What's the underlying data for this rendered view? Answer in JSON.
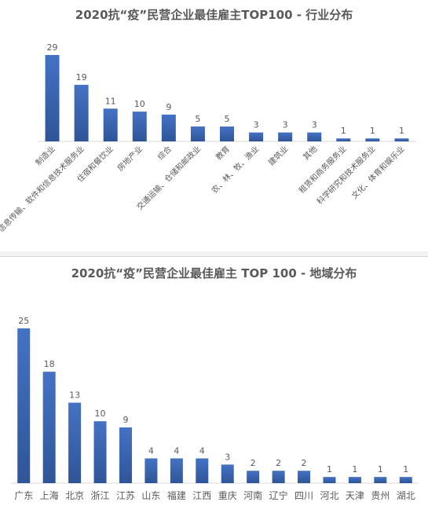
{
  "chart_data": [
    {
      "type": "bar",
      "title": "2020抗“疫”民营企业最佳雇主TOP100 - 行业分布",
      "categories": [
        "制造业",
        "信息传输、软件和信息技术服务业",
        "住宿和餐饮业",
        "房地产业",
        "综合",
        "交通运输、仓储和邮政业",
        "教育",
        "农、林、牧、渔业",
        "建筑业",
        "其他",
        "租赁和商务服务业",
        "科学研究和技术服务业",
        "文化、体育和娱乐业"
      ],
      "values": [
        29,
        19,
        11,
        10,
        9,
        5,
        5,
        3,
        3,
        3,
        1,
        1,
        1
      ],
      "value_labels": [
        "29",
        "19",
        "11",
        "10",
        "9",
        "5",
        "5",
        "3",
        "3",
        "3",
        "1",
        "1",
        "1"
      ],
      "grid": false,
      "bar_color": "#4472c4"
    },
    {
      "type": "bar",
      "title": "2020抗“疫”民营企业最佳雇主 TOP 100 - 地域分布",
      "categories": [
        "广东",
        "上海",
        "北京",
        "浙江",
        "江苏",
        "山东",
        "福建",
        "江西",
        "重庆",
        "河南",
        "辽宁",
        "四川",
        "河北",
        "天津",
        "贵州",
        "湖北"
      ],
      "values": [
        25,
        18,
        13,
        10,
        9,
        4,
        4,
        4,
        3,
        2,
        2,
        2,
        1,
        1,
        1,
        1
      ],
      "value_labels": [
        "25",
        "18",
        "13",
        "10",
        "9",
        "4",
        "4",
        "4",
        "3",
        "2",
        "2",
        "2",
        "1",
        "1",
        "1",
        "1"
      ],
      "grid": false,
      "bar_color": "#4472c4"
    }
  ]
}
